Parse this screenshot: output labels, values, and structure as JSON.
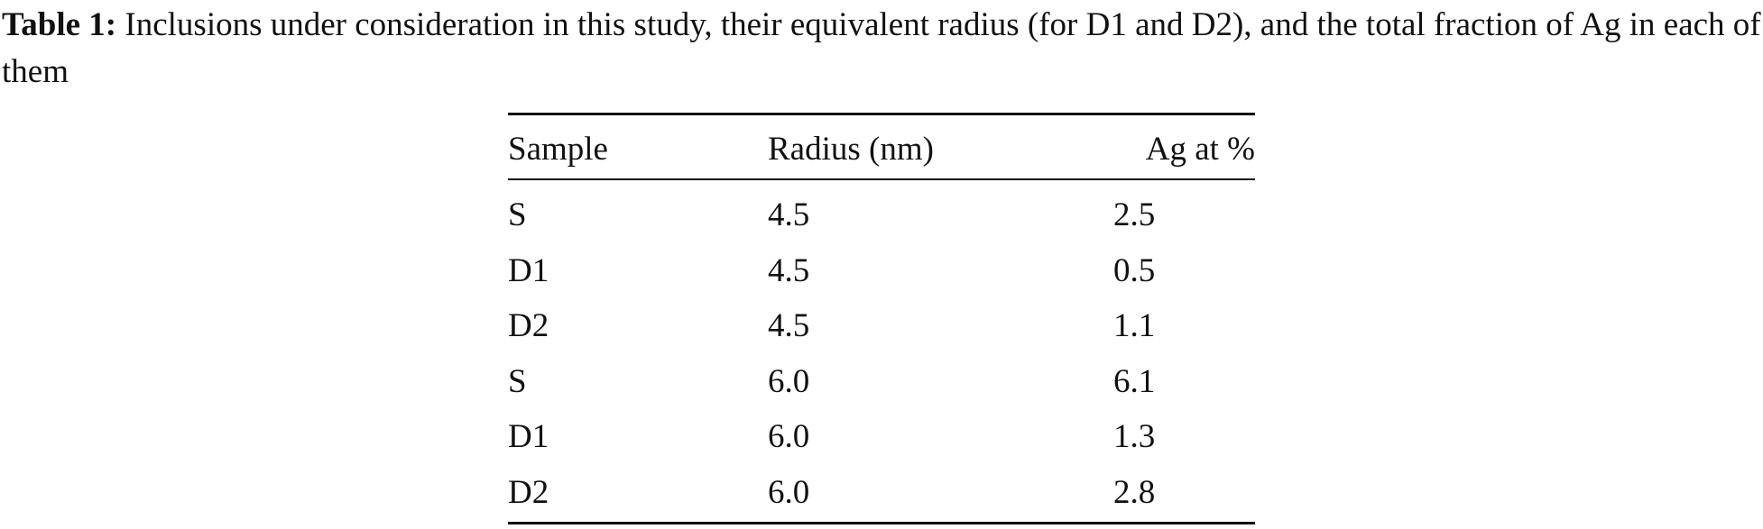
{
  "caption": {
    "label": "Table 1:",
    "text": "Inclusions under consideration in this study, their equivalent radius (for D1 and D2), and the total fraction of Ag in each of them"
  },
  "table": {
    "header": [
      "Sample",
      "Radius (nm)",
      "Ag at %"
    ],
    "rows": [
      [
        "S",
        "4.5",
        "2.5"
      ],
      [
        "D1",
        "4.5",
        "0.5"
      ],
      [
        "D2",
        "4.5",
        "1.1"
      ],
      [
        "S",
        "6.0",
        "6.1"
      ],
      [
        "D1",
        "6.0",
        "1.3"
      ],
      [
        "D2",
        "6.0",
        "2.8"
      ]
    ]
  }
}
